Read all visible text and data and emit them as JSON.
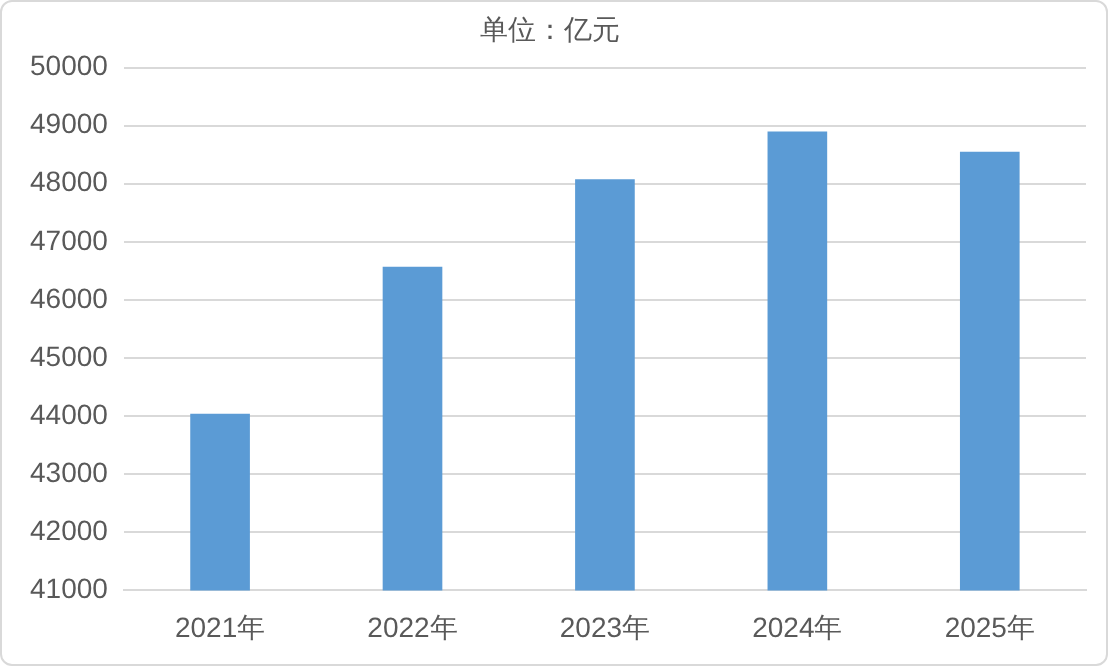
{
  "chart_data": {
    "type": "bar",
    "title": "单位：亿元",
    "categories": [
      "2021年",
      "2022年",
      "2023年",
      "2024年",
      "2025年"
    ],
    "values": [
      44040,
      46570,
      48080,
      48900,
      48550
    ],
    "color": "#5b9bd5",
    "ylim": [
      41000,
      50000
    ],
    "yticks": [
      41000,
      42000,
      43000,
      44000,
      45000,
      46000,
      47000,
      48000,
      49000,
      50000
    ],
    "grid": "y"
  }
}
